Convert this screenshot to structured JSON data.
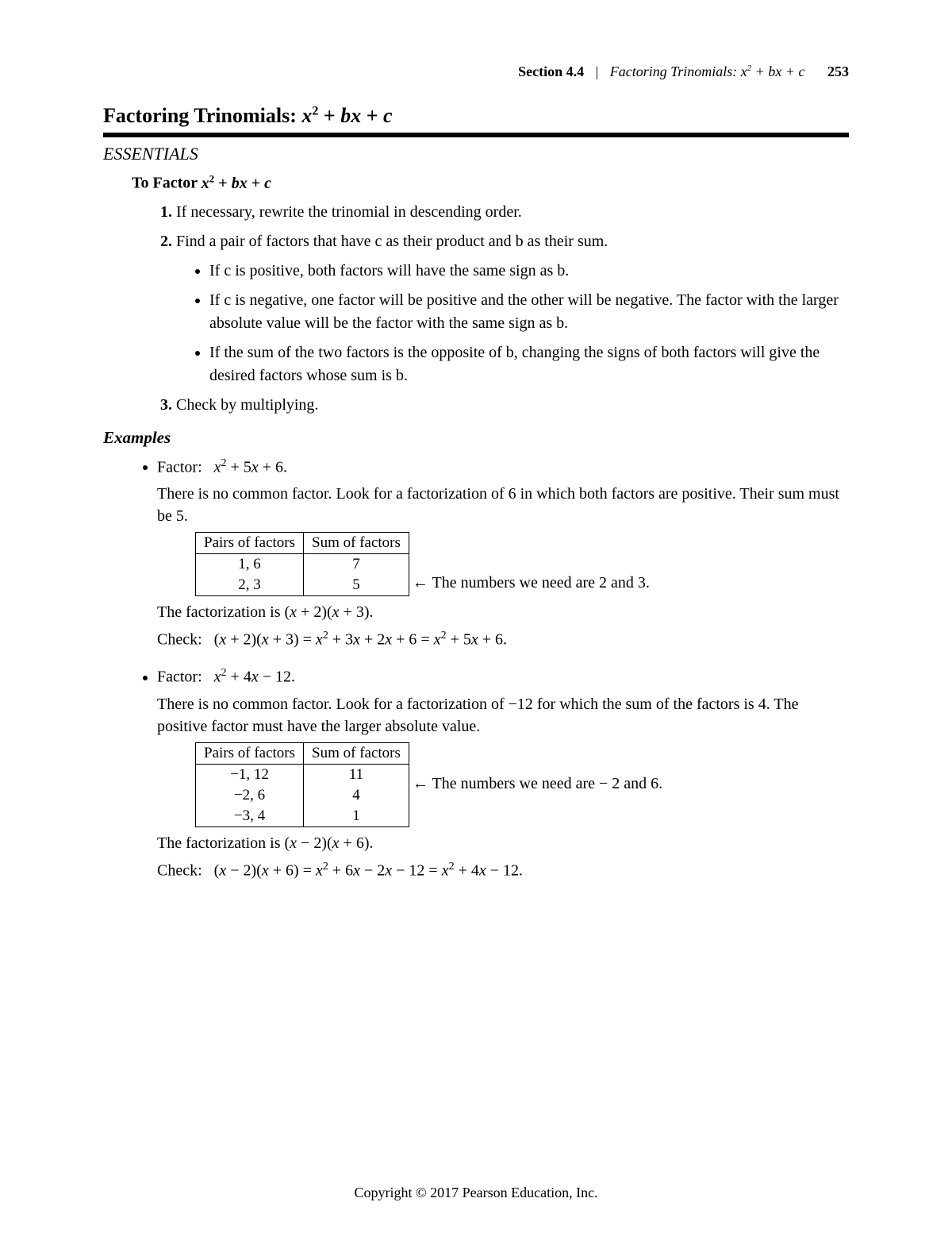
{
  "header": {
    "section_label": "Section 4.4",
    "separator": "|",
    "running_title_prefix": "Factoring Trinomials:  ",
    "running_title_math": "x² + bx + c",
    "page_number": "253"
  },
  "title": {
    "prefix": "Factoring Trinomials:  ",
    "math": "x² + bx + c"
  },
  "essentials_heading": "ESSENTIALS",
  "to_factor": {
    "label": "To Factor  ",
    "math": "x² + bx + c"
  },
  "steps": [
    "If necessary, rewrite the trinomial in descending order.",
    "Find a pair of factors that have c as their product and b as their sum.",
    "Check by multiplying."
  ],
  "sub_bullets": [
    "If c is positive, both factors will have the same sign as b.",
    "If c is negative, one factor will be positive and the other will be negative.  The factor with the larger absolute value will be the factor with the same sign as b.",
    "If the sum of the two factors is the opposite of b, changing the signs of both factors will give the desired factors whose sum is b."
  ],
  "examples_heading": "Examples",
  "ex1": {
    "prompt": "Factor:   x² + 5x + 6.",
    "explain": "There is no common factor.  Look for a factorization of 6 in which both factors are positive.  Their sum must be 5.",
    "table": {
      "headers": [
        "Pairs of factors",
        "Sum of factors"
      ],
      "rows": [
        [
          "1, 6",
          "7"
        ],
        [
          "2, 3",
          "5"
        ]
      ]
    },
    "note": "←  The numbers we need are 2 and 3.",
    "factorization": "The factorization is (x + 2)(x + 3).",
    "check": "Check:   (x + 2)(x + 3) = x² + 3x + 2x + 6 = x² + 5x + 6."
  },
  "ex2": {
    "prompt": "Factor:   x² + 4x − 12.",
    "explain": "There is no common factor.  Look for a factorization of −12 for which the sum of the factors is 4.  The positive factor must have the larger absolute value.",
    "table": {
      "headers": [
        "Pairs of factors",
        "Sum of factors"
      ],
      "rows": [
        [
          "−1,  12",
          "11"
        ],
        [
          "−2,  6",
          "4"
        ],
        [
          "−3,  4",
          "1"
        ]
      ]
    },
    "note": "←  The numbers we need are − 2 and 6.",
    "factorization": "The factorization is (x − 2)(x + 6).",
    "check": "Check:   (x − 2)(x + 6) = x² + 6x − 2x − 12 = x² + 4x − 12."
  },
  "footer": "Copyright © 2017 Pearson Education, Inc."
}
